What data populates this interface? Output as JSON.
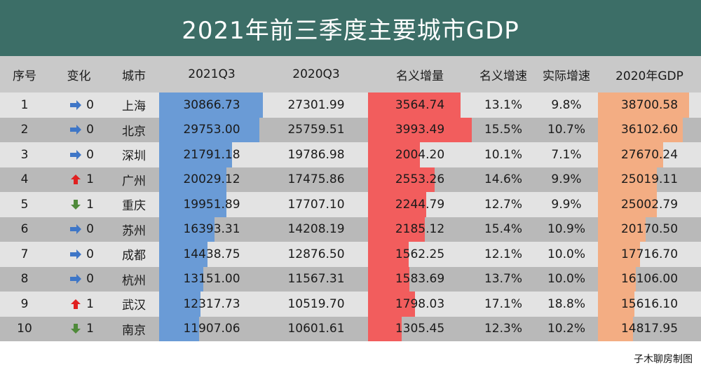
{
  "title": "2021年前三季度主要城市GDP",
  "credit": "子木聊房制图",
  "colors": {
    "title_bg": "#3c6e67",
    "header_bg": "#c9c9c9",
    "row_light": "#e3e3e3",
    "row_dark": "#b9b9b9",
    "bar_2021": "#6a9bd6",
    "bar_increase": "#f25d5d",
    "bar_2020gdp": "#f3ad83",
    "arrow_flat": "#3e76c7",
    "arrow_up": "#e02020",
    "arrow_down": "#4f8a3a"
  },
  "headers": [
    "序号",
    "变化",
    "城市",
    "2021Q3",
    "2020Q3",
    "名义增量",
    "名义增速",
    "实际增速",
    "2020年GDP"
  ],
  "rows": [
    {
      "rank": "1",
      "dir": "flat",
      "change": "0",
      "city": "上海",
      "q3_2021": "30866.73",
      "q3_2020": "27301.99",
      "increase": "3564.74",
      "nominal": "13.1%",
      "real": "9.8%",
      "gdp_2020": "38700.58",
      "v2021": 30866.73,
      "vinc": 3564.74,
      "vgdp": 38700.58
    },
    {
      "rank": "2",
      "dir": "flat",
      "change": "0",
      "city": "北京",
      "q3_2021": "29753.00",
      "q3_2020": "25759.51",
      "increase": "3993.49",
      "nominal": "15.5%",
      "real": "10.7%",
      "gdp_2020": "36102.60",
      "v2021": 29753.0,
      "vinc": 3993.49,
      "vgdp": 36102.6
    },
    {
      "rank": "3",
      "dir": "flat",
      "change": "0",
      "city": "深圳",
      "q3_2021": "21791.18",
      "q3_2020": "19786.98",
      "increase": "2004.20",
      "nominal": "10.1%",
      "real": "7.1%",
      "gdp_2020": "27670.24",
      "v2021": 21791.18,
      "vinc": 2004.2,
      "vgdp": 27670.24
    },
    {
      "rank": "4",
      "dir": "up",
      "change": "1",
      "city": "广州",
      "q3_2021": "20029.12",
      "q3_2020": "17475.86",
      "increase": "2553.26",
      "nominal": "14.6%",
      "real": "9.9%",
      "gdp_2020": "25019.11",
      "v2021": 20029.12,
      "vinc": 2553.26,
      "vgdp": 25019.11
    },
    {
      "rank": "5",
      "dir": "down",
      "change": "1",
      "city": "重庆",
      "q3_2021": "19951.89",
      "q3_2020": "17707.10",
      "increase": "2244.79",
      "nominal": "12.7%",
      "real": "9.9%",
      "gdp_2020": "25002.79",
      "v2021": 19951.89,
      "vinc": 2244.79,
      "vgdp": 25002.79
    },
    {
      "rank": "6",
      "dir": "flat",
      "change": "0",
      "city": "苏州",
      "q3_2021": "16393.31",
      "q3_2020": "14208.19",
      "increase": "2185.12",
      "nominal": "15.4%",
      "real": "10.9%",
      "gdp_2020": "20170.50",
      "v2021": 16393.31,
      "vinc": 2185.12,
      "vgdp": 20170.5
    },
    {
      "rank": "7",
      "dir": "flat",
      "change": "0",
      "city": "成都",
      "q3_2021": "14438.75",
      "q3_2020": "12876.50",
      "increase": "1562.25",
      "nominal": "12.1%",
      "real": "10.0%",
      "gdp_2020": "17716.70",
      "v2021": 14438.75,
      "vinc": 1562.25,
      "vgdp": 17716.7
    },
    {
      "rank": "8",
      "dir": "flat",
      "change": "0",
      "city": "杭州",
      "q3_2021": "13151.00",
      "q3_2020": "11567.31",
      "increase": "1583.69",
      "nominal": "13.7%",
      "real": "10.0%",
      "gdp_2020": "16106.00",
      "v2021": 13151.0,
      "vinc": 1583.69,
      "vgdp": 16106.0
    },
    {
      "rank": "9",
      "dir": "up",
      "change": "1",
      "city": "武汉",
      "q3_2021": "12317.73",
      "q3_2020": "10519.70",
      "increase": "1798.03",
      "nominal": "17.1%",
      "real": "18.8%",
      "gdp_2020": "15616.10",
      "v2021": 12317.73,
      "vinc": 1798.03,
      "vgdp": 15616.1
    },
    {
      "rank": "10",
      "dir": "down",
      "change": "1",
      "city": "南京",
      "q3_2021": "11907.06",
      "q3_2020": "10601.61",
      "increase": "1305.45",
      "nominal": "12.3%",
      "real": "10.2%",
      "gdp_2020": "14817.95",
      "v2021": 11907.06,
      "vinc": 1305.45,
      "vgdp": 14817.95
    }
  ]
}
